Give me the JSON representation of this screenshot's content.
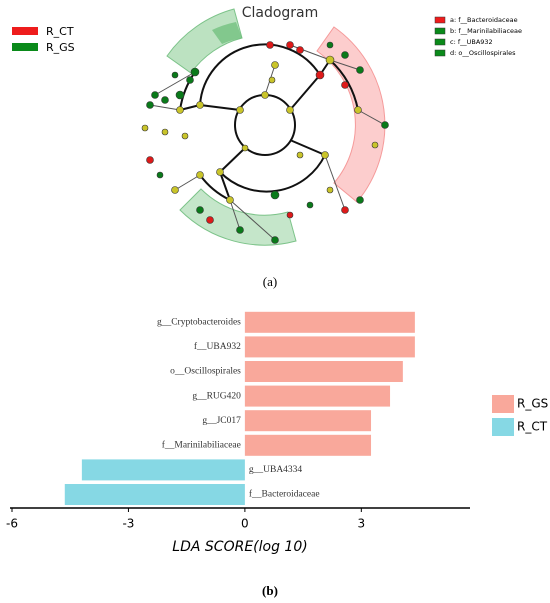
{
  "cladogram": {
    "title": "Cladogram",
    "caption": "(a)",
    "groups": [
      {
        "name": "R_CT",
        "color": "#ee1c1c"
      },
      {
        "name": "R_GS",
        "color": "#0a8a1a"
      }
    ],
    "key": [
      "a: f__Bacteroidaceae",
      "b: f__Marinilabiliaceae",
      "c: f__UBA932",
      "d: o__Oscillospirales"
    ]
  },
  "chart_data": {
    "type": "bar",
    "orientation": "horizontal",
    "caption": "(b)",
    "xlabel": "LDA SCORE(log 10)",
    "categories": [
      "g__Cryptobacteroides",
      "f__UBA932",
      "o__Oscillospirales",
      "g__RUG420",
      "g__JC017",
      "f__Marinilabiliaceae",
      "g__UBA4334",
      "f__Bacteroidaceae"
    ],
    "series": [
      {
        "name": "R_GS",
        "color": "#f9a89b",
        "values": [
          4.38,
          4.38,
          4.07,
          3.74,
          3.25,
          3.25,
          null,
          null
        ]
      },
      {
        "name": "R_CT",
        "color": "#86d8e4",
        "values": [
          null,
          null,
          null,
          null,
          null,
          null,
          -4.2,
          -4.64
        ]
      }
    ],
    "xlim": [
      -6,
      5.8
    ],
    "xticks": [
      -6,
      -3,
      0,
      3
    ],
    "legend": "right"
  }
}
